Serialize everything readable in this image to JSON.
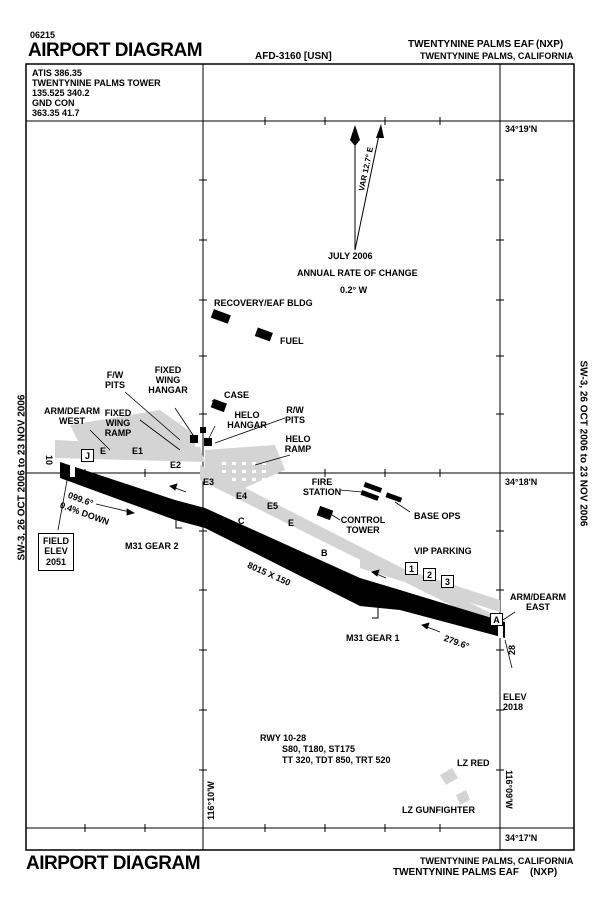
{
  "header": {
    "doc_number": "06215",
    "title_left": "AIRPORT DIAGRAM",
    "center_code": "AFD-3160 [USN]",
    "airport_name": "TWENTYNINE PALMS EAF",
    "airport_id": "(NXP)",
    "location": "TWENTYNINE PALMS, CALIFORNIA"
  },
  "footer": {
    "title_left": "AIRPORT DIAGRAM",
    "location": "TWENTYNINE PALMS, CALIFORNIA",
    "airport_name": "TWENTYNINE PALMS EAF",
    "airport_id": "(NXP)"
  },
  "side_labels": {
    "left": "SW-3, 26 OCT 2006 to 23 NOV 2006",
    "right": "SW-3, 26 OCT 2006 to 23 NOV 2006"
  },
  "frequencies": {
    "line1": "ATIS  386.35",
    "line2": "TWENTYNINE PALMS TOWER",
    "line3": "135.525  340.2",
    "line4": "GND CON",
    "line5": "363.35    41.7"
  },
  "coordinates": {
    "lat_top": "34°19'N",
    "lat_mid": "34°18'N",
    "lat_bottom": "34°17'N",
    "lon_left": "116°10'W",
    "lon_right": "116°09'W"
  },
  "compass": {
    "variation": "VAR 12.7° E",
    "date": "JULY 2006",
    "rate_label": "ANNUAL RATE OF CHANGE",
    "rate_value": "0.2° W"
  },
  "runway": {
    "dimensions": "8015 X 150",
    "end_west": "10",
    "end_east": "28",
    "heading_west": "099.6°",
    "heading_east": "279.6°",
    "gradient": "0.4% DOWN",
    "designation": "RWY 10-28",
    "strength_line1": "S80, T180, ST175",
    "strength_line2": "TT 320, TDT 850, TRT 520",
    "elev_label": "ELEV",
    "elev_value": "2018"
  },
  "field_elev": {
    "label1": "FIELD",
    "label2": "ELEV",
    "value": "2051"
  },
  "labels": {
    "recovery": "RECOVERY/EAF BLDG",
    "fuel": "FUEL",
    "case": "CASE",
    "helo_hangar_1": "HELO",
    "helo_hangar_2": "HANGAR",
    "rw_pits_1": "R/W",
    "rw_pits_2": "PITS",
    "helo_ramp_1": "HELO",
    "helo_ramp_2": "RAMP",
    "fw_pits_1": "F/W",
    "fw_pits_2": "PITS",
    "fw_hangar_1": "FIXED",
    "fw_hangar_2": "WING",
    "fw_hangar_3": "HANGAR",
    "fw_ramp_1": "FIXED",
    "fw_ramp_2": "WING",
    "fw_ramp_3": "RAMP",
    "arm_west_1": "ARM/DEARM",
    "arm_west_2": "WEST",
    "arm_east_1": "ARM/DEARM",
    "arm_east_2": "EAST",
    "fire_1": "FIRE",
    "fire_2": "STATION",
    "base_ops": "BASE OPS",
    "control_1": "CONTROL",
    "control_2": "TOWER",
    "vip": "VIP PARKING",
    "gear2": "M31 GEAR 2",
    "gear1": "M31 GEAR 1",
    "lz_red": "LZ RED",
    "lz_gun": "LZ GUNFIGHTER"
  },
  "taxiways": {
    "J": "J",
    "A": "A",
    "E": "E",
    "E1": "E1",
    "E2": "E2",
    "E3": "E3",
    "E4": "E4",
    "E5": "E5",
    "C": "C",
    "B": "B",
    "E_lower": "E",
    "vip1": "1",
    "vip2": "2",
    "vip3": "3"
  }
}
